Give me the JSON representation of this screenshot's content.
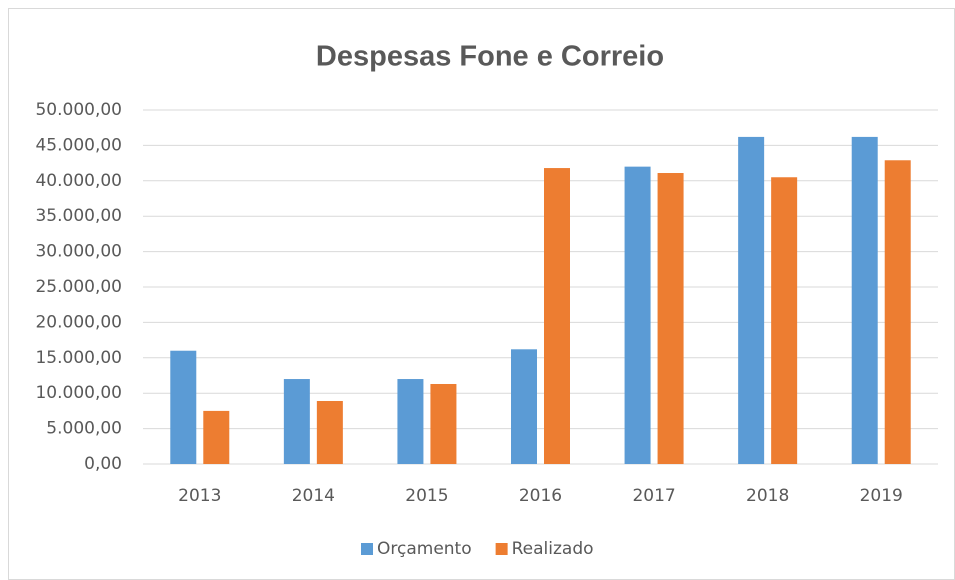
{
  "chart_data": {
    "type": "bar",
    "title": "Despesas Fone e Correio",
    "categories": [
      "2013",
      "2014",
      "2015",
      "2016",
      "2017",
      "2018",
      "2019"
    ],
    "series": [
      {
        "name": "Orçamento",
        "color": "#5b9bd5",
        "values": [
          16000,
          12000,
          12000,
          16200,
          42000,
          46200,
          46200
        ]
      },
      {
        "name": "Realizado",
        "color": "#ed7d31",
        "values": [
          7500,
          8900,
          11300,
          41800,
          41100,
          40500,
          42900
        ]
      }
    ],
    "ylim": [
      0,
      50000
    ],
    "yticks": [
      {
        "value": 0,
        "label": "0,00"
      },
      {
        "value": 5000,
        "label": "5.000,00"
      },
      {
        "value": 10000,
        "label": "10.000,00"
      },
      {
        "value": 15000,
        "label": "15.000,00"
      },
      {
        "value": 20000,
        "label": "20.000,00"
      },
      {
        "value": 25000,
        "label": "25.000,00"
      },
      {
        "value": 30000,
        "label": "30.000,00"
      },
      {
        "value": 35000,
        "label": "35.000,00"
      },
      {
        "value": 40000,
        "label": "40.000,00"
      },
      {
        "value": 45000,
        "label": "45.000,00"
      },
      {
        "value": 50000,
        "label": "50.000,00"
      }
    ],
    "grid": true,
    "legend": "bottom"
  }
}
